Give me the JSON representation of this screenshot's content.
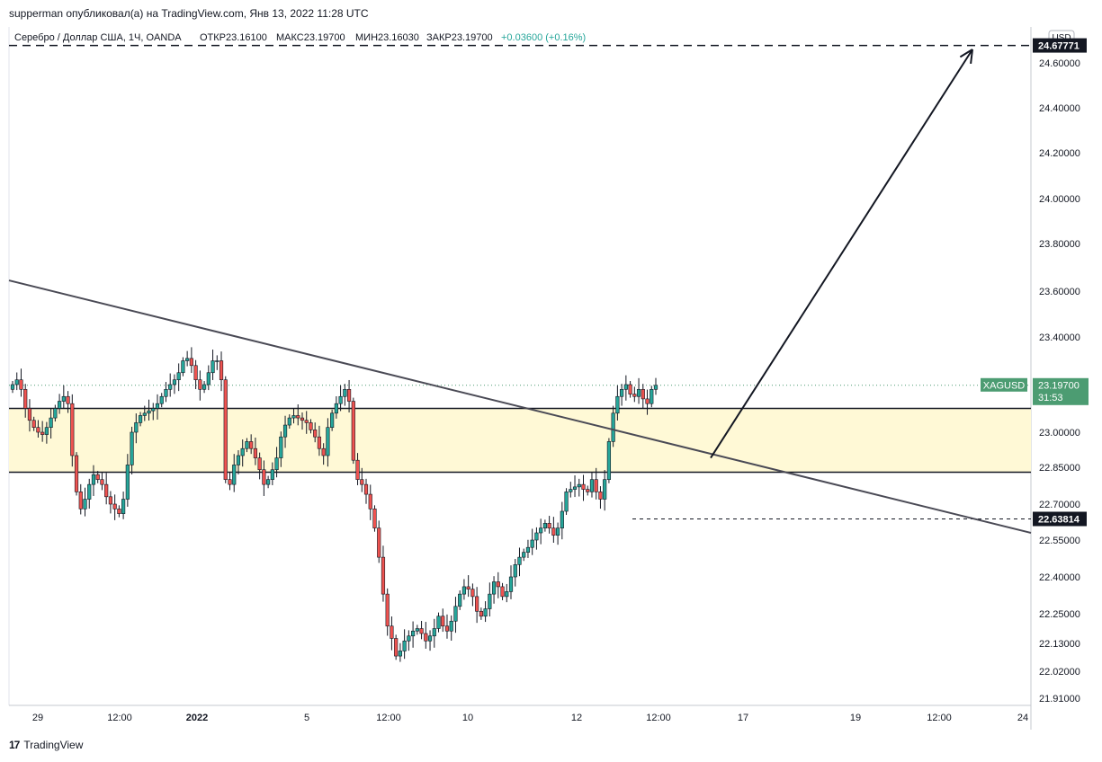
{
  "header": {
    "published_text": "supperman опубликовал(а) на TradingView.com, Янв 13, 2022 11:28 UTC"
  },
  "legend": {
    "symbol_line": "Серебро / Доллар США, 1Ч, OANDA",
    "open": "ОТКР23.16100",
    "high": "МАКС23.19700",
    "low": "МИН23.16030",
    "close": "ЗАКР23.19700",
    "change": "+0.03600 (+0.16%)"
  },
  "footer": {
    "brand": "TradingView",
    "logo_glyph": "17"
  },
  "colors": {
    "up": "#26a69a",
    "down": "#ef5350",
    "zone_fill": "#fff9d6",
    "price_label": "#4c9c72",
    "dark_label": "#131722",
    "trendline": "#4a4a55"
  },
  "chart_data": {
    "type": "candlestick",
    "symbol": "XAGUSD",
    "currency": "USD",
    "y_axis_ticks": [
      24.6,
      24.4,
      24.2,
      24.0,
      23.8,
      23.6,
      23.4,
      23.0,
      22.85,
      22.7,
      22.55,
      22.4,
      22.25,
      22.13,
      22.02,
      21.91
    ],
    "y_tick_labels": [
      "24.60000",
      "24.40000",
      "24.20000",
      "24.00000",
      "23.80000",
      "23.60000",
      "23.40000",
      "23.00000",
      "22.85000",
      "22.70000",
      "22.55000",
      "22.40000",
      "22.25000",
      "22.13000",
      "22.02000",
      "21.91000"
    ],
    "x_axis_ticks": [
      "29",
      "12:00",
      "2022",
      "5",
      "12:00",
      "10",
      "12",
      "12:00",
      "17",
      "19",
      "12:00",
      "24"
    ],
    "price_labels": [
      {
        "text": "24.67771",
        "value": 24.67771,
        "style": "dark"
      },
      {
        "symbol": "XAGUSD",
        "text": "23.19700",
        "countdown": "31:53",
        "value": 23.197,
        "style": "current"
      },
      {
        "text": "22.63814",
        "value": 22.63814,
        "style": "dark"
      }
    ],
    "support_resistance_zone": {
      "upper": 23.1,
      "lower": 22.83
    },
    "target_level": 24.67771,
    "lower_dashed_level": 22.63814,
    "trendline": {
      "start_value": 23.645,
      "end_value": 22.58
    },
    "forecast_path": [
      {
        "value": 22.89
      },
      {
        "value": 24.66
      }
    ],
    "candles_close": [
      23.2,
      23.22,
      23.18,
      23.1,
      23.05,
      23.02,
      23.0,
      22.99,
      23.02,
      23.06,
      23.1,
      23.13,
      23.15,
      23.12,
      22.9,
      22.75,
      22.68,
      22.72,
      22.78,
      22.82,
      22.8,
      22.78,
      22.73,
      22.7,
      22.68,
      22.66,
      22.72,
      22.86,
      23.0,
      23.04,
      23.07,
      23.08,
      23.09,
      23.1,
      23.12,
      23.15,
      23.18,
      23.2,
      23.22,
      23.25,
      23.3,
      23.31,
      23.28,
      23.22,
      23.18,
      23.2,
      23.25,
      23.3,
      23.3,
      23.22,
      22.8,
      22.78,
      22.86,
      22.9,
      22.93,
      22.96,
      22.93,
      22.89,
      22.84,
      22.78,
      22.8,
      22.84,
      22.89,
      22.98,
      23.03,
      23.06,
      23.07,
      23.06,
      23.05,
      23.04,
      23.01,
      22.98,
      22.93,
      22.9,
      23.02,
      23.08,
      23.12,
      23.15,
      23.18,
      23.13,
      22.88,
      22.8,
      22.78,
      22.74,
      22.68,
      22.6,
      22.48,
      22.33,
      22.2,
      22.15,
      22.08,
      22.1,
      22.14,
      22.16,
      22.18,
      22.19,
      22.17,
      22.14,
      22.16,
      22.19,
      22.24,
      22.2,
      22.18,
      22.22,
      22.28,
      22.33,
      22.36,
      22.35,
      22.32,
      22.26,
      22.24,
      22.27,
      22.33,
      22.38,
      22.36,
      22.32,
      22.34,
      22.4,
      22.45,
      22.48,
      22.5,
      22.52,
      22.55,
      22.58,
      22.6,
      22.62,
      22.6,
      22.57,
      22.6,
      22.67,
      22.75,
      22.76,
      22.77,
      22.78,
      22.76,
      22.75,
      22.8,
      22.75,
      22.72,
      22.8,
      22.96,
      23.08,
      23.15,
      23.18,
      23.2,
      23.16,
      23.15,
      23.18,
      23.14,
      23.12,
      23.18,
      23.197
    ]
  }
}
